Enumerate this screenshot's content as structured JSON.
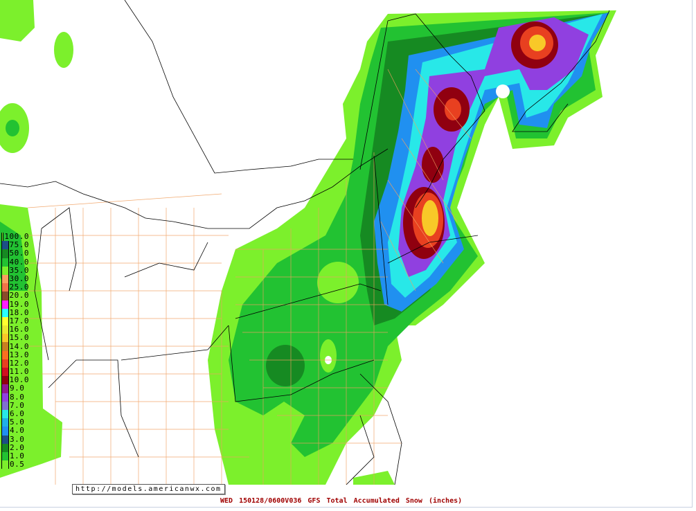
{
  "map": {
    "url_label": "http://models.americanwx.com",
    "caption": "WED 150128/0600V036  GFS Total Accumulated  Snow (inches)",
    "legend": [
      {
        "label": "100.0",
        "color": "#7cf02c"
      },
      {
        "label": "75.0",
        "color": "#1c4f86"
      },
      {
        "label": "50.0",
        "color": "#168a22"
      },
      {
        "label": "40.0",
        "color": "#22c232"
      },
      {
        "label": "35.0",
        "color": "#7cf02c"
      },
      {
        "label": "30.0",
        "color": "#f8a060"
      },
      {
        "label": "25.0",
        "color": "#f07448"
      },
      {
        "label": "20.0",
        "color": "#8a4a2a"
      },
      {
        "label": "19.0",
        "color": "#ff20ff"
      },
      {
        "label": "18.0",
        "color": "#28ffff"
      },
      {
        "label": "17.0",
        "color": "#ffff30"
      },
      {
        "label": "16.0",
        "color": "#ece830"
      },
      {
        "label": "15.0",
        "color": "#f8c828"
      },
      {
        "label": "14.0",
        "color": "#c88020"
      },
      {
        "label": "13.0",
        "color": "#f87020"
      },
      {
        "label": "12.0",
        "color": "#e84020"
      },
      {
        "label": "11.0",
        "color": "#d01020"
      },
      {
        "label": "10.0",
        "color": "#900010"
      },
      {
        "label": "9.0",
        "color": "#901890"
      },
      {
        "label": "8.0",
        "color": "#9040e0"
      },
      {
        "label": "7.0",
        "color": "#8070d0"
      },
      {
        "label": "6.0",
        "color": "#28e8e8"
      },
      {
        "label": "5.0",
        "color": "#20b0e8"
      },
      {
        "label": "4.0",
        "color": "#2090f0"
      },
      {
        "label": "3.0",
        "color": "#1c4f86"
      },
      {
        "label": "2.0",
        "color": "#168a22"
      },
      {
        "label": "1.0",
        "color": "#22c232"
      },
      {
        "label": "0.5",
        "color": "#7cf02c"
      }
    ]
  }
}
